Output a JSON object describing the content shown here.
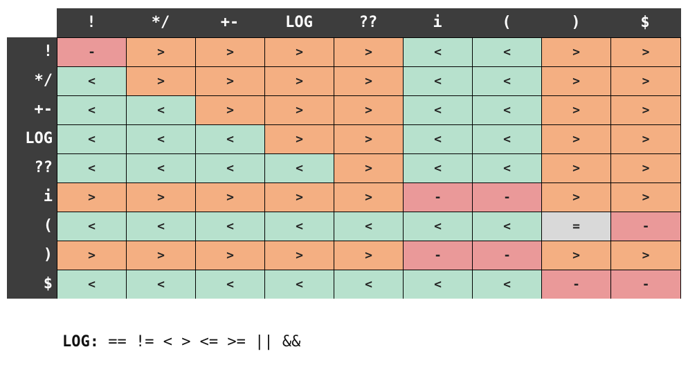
{
  "columns": [
    "!",
    "*/",
    "+-",
    "LOG",
    "??",
    "i",
    "(",
    ")",
    "$"
  ],
  "rows": [
    {
      "label": "!",
      "cells": [
        "-",
        ">",
        ">",
        ">",
        ">",
        "<",
        "<",
        ">",
        ">"
      ]
    },
    {
      "label": "*/",
      "cells": [
        "<",
        ">",
        ">",
        ">",
        ">",
        "<",
        "<",
        ">",
        ">"
      ]
    },
    {
      "label": "+-",
      "cells": [
        "<",
        "<",
        ">",
        ">",
        ">",
        "<",
        "<",
        ">",
        ">"
      ]
    },
    {
      "label": "LOG",
      "cells": [
        "<",
        "<",
        "<",
        ">",
        ">",
        "<",
        "<",
        ">",
        ">"
      ]
    },
    {
      "label": "??",
      "cells": [
        "<",
        "<",
        "<",
        "<",
        ">",
        "<",
        "<",
        ">",
        ">"
      ]
    },
    {
      "label": "i",
      "cells": [
        ">",
        ">",
        ">",
        ">",
        ">",
        "-",
        "-",
        ">",
        ">"
      ]
    },
    {
      "label": "(",
      "cells": [
        "<",
        "<",
        "<",
        "<",
        "<",
        "<",
        "<",
        "=",
        "-"
      ]
    },
    {
      "label": ")",
      "cells": [
        ">",
        ">",
        ">",
        ">",
        ">",
        "-",
        "-",
        ">",
        ">"
      ]
    },
    {
      "label": "$",
      "cells": [
        "<",
        "<",
        "<",
        "<",
        "<",
        "<",
        "<",
        "-",
        "-"
      ]
    }
  ],
  "colors": {
    "header_bg": "#3d3d3d",
    "header_text": "#ffffff",
    "greater": "#f4af82",
    "less": "#b7e1cd",
    "error": "#ea9999",
    "equal": "#d9d9d9",
    "grid_line": "#000000"
  },
  "note": {
    "key": "LOG:",
    "operators": "== != < > <= >= || &&"
  }
}
